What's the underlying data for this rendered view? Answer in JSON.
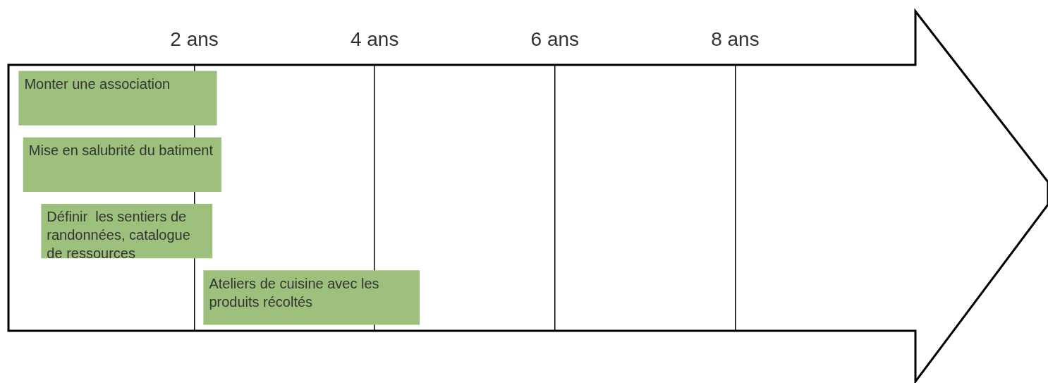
{
  "chart_data": {
    "type": "bar",
    "orientation": "horizontal",
    "categories": [
      "Monter une association",
      "Mise en salubrité du batiment",
      "Définir  les sentiers de randonnées, catalogue de ressources",
      "Ateliers de cuisine avec les produits récoltés"
    ],
    "base": [
      0.05,
      0.1,
      0.3,
      2.1
    ],
    "values": [
      2.2,
      2.2,
      1.9,
      2.4
    ],
    "color": "#9dc17c",
    "xlim": [
      0,
      10
    ],
    "xticks": [
      {
        "value": 2,
        "label": "2 ans"
      },
      {
        "value": 4,
        "label": "4 ans"
      },
      {
        "value": 6,
        "label": "6 ans"
      },
      {
        "value": 8,
        "label": "8 ans"
      }
    ],
    "grid": "x"
  }
}
